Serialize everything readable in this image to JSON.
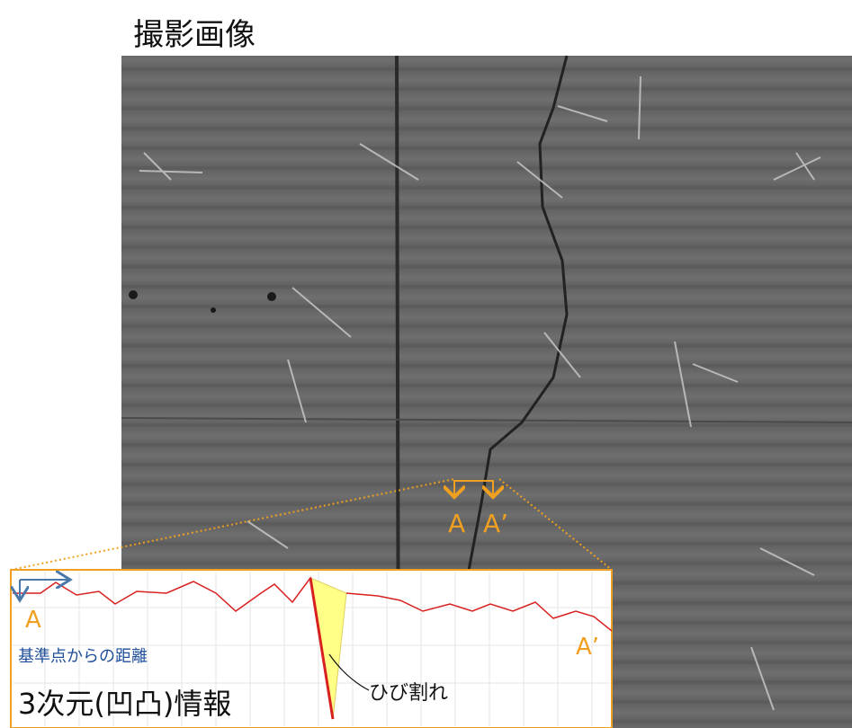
{
  "title": "撮影画像",
  "image": {
    "markers": [
      "A",
      "A’"
    ]
  },
  "inset": {
    "start_label": "A",
    "end_label": "A’",
    "axis_label": "基準点からの距離",
    "title": "3次元(凹凸)情報",
    "annotation": "ひび割れ"
  }
}
